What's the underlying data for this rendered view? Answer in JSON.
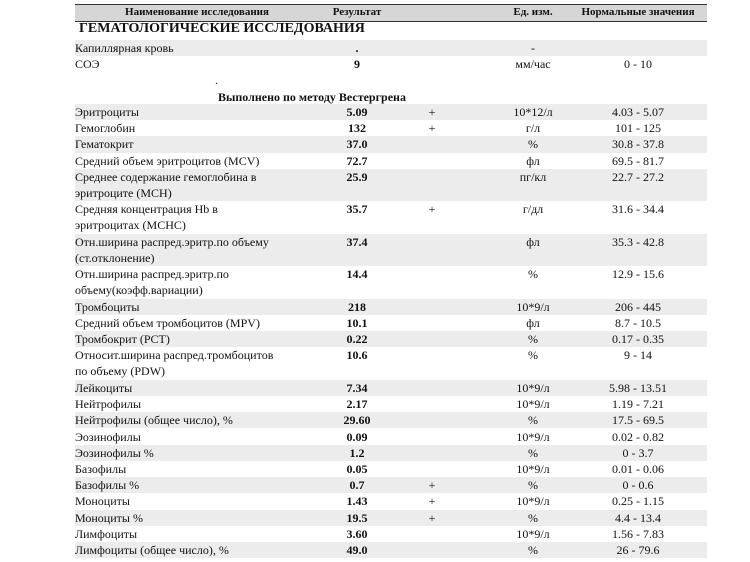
{
  "header": {
    "columns": [
      "Наименование исследования",
      "Результат",
      "Ед. изм.",
      "Нормальные значения"
    ]
  },
  "section_title": "ГЕМАТОЛОГИЧЕСКИЕ ИССЛЕДОВАНИЯ",
  "pre_rows": [
    {
      "name": [
        "Капиллярная кровь"
      ],
      "result": ".",
      "unit": "-"
    },
    {
      "name": [
        "СОЭ"
      ],
      "result": "9",
      "unit": "мм/час",
      "norm": "0 - 10"
    }
  ],
  "note_dot": ".",
  "method": "Выполнено по методу Вестергрена",
  "rows": [
    {
      "name": [
        "Эритроциты"
      ],
      "result": "5.09",
      "flag": "+",
      "unit": "10*12/л",
      "norm": "4.03 - 5.07"
    },
    {
      "name": [
        "Гемоглобин"
      ],
      "result": "132",
      "flag": "+",
      "unit": "г/л",
      "norm": "101 - 125"
    },
    {
      "name": [
        "Гематокрит"
      ],
      "result": "37.0",
      "unit": "%",
      "norm": "30.8 - 37.8"
    },
    {
      "name": [
        "Средний объем эритроцитов (MCV)"
      ],
      "result": "72.7",
      "unit": "фл",
      "norm": "69.5 - 81.7"
    },
    {
      "name": [
        "Среднее содержание гемоглобина в",
        "эритроците (MCH)"
      ],
      "result": "25.9",
      "unit": "пг/кл",
      "norm": "22.7 - 27.2"
    },
    {
      "name": [
        "Средняя концентрация Hb в",
        "эритроцитах (MCHC)"
      ],
      "result": "35.7",
      "flag": "+",
      "unit": "г/дл",
      "norm": "31.6 - 34.4"
    },
    {
      "name": [
        "Отн.ширина распред.эритр.по объему",
        "(ст.отклонение)"
      ],
      "result": "37.4",
      "unit": "фл",
      "norm": "35.3 - 42.8"
    },
    {
      "name": [
        "Отн.ширина распред.эритр.по",
        "объему(коэфф.вариации)"
      ],
      "result": "14.4",
      "unit": "%",
      "norm": "12.9 - 15.6"
    },
    {
      "name": [
        "Тромбоциты"
      ],
      "result": "218",
      "unit": "10*9/л",
      "norm": "206 - 445"
    },
    {
      "name": [
        "Средний объем тромбоцитов (MPV)"
      ],
      "result": "10.1",
      "unit": "фл",
      "norm": "8.7 - 10.5"
    },
    {
      "name": [
        "Тромбокрит (PCT)"
      ],
      "result": "0.22",
      "unit": "%",
      "norm": "0.17 - 0.35"
    },
    {
      "name": [
        "Относит.ширина распред.тромбоцитов",
        "по объему (PDW)"
      ],
      "result": "10.6",
      "unit": "%",
      "norm": "9 - 14"
    },
    {
      "name": [
        "Лейкоциты"
      ],
      "result": "7.34",
      "unit": "10*9/л",
      "norm": "5.98 - 13.51"
    },
    {
      "name": [
        "Нейтрофилы"
      ],
      "result": "2.17",
      "unit": "10*9/л",
      "norm": "1.19 - 7.21"
    },
    {
      "name": [
        "Нейтрофилы (общее число), %"
      ],
      "result": "29.60",
      "unit": "%",
      "norm": "17.5 - 69.5"
    },
    {
      "name": [
        "Эозинофилы"
      ],
      "result": "0.09",
      "unit": "10*9/л",
      "norm": "0.02 - 0.82"
    },
    {
      "name": [
        "Эозинофилы %"
      ],
      "result": "1.2",
      "unit": "%",
      "norm": "0 - 3.7"
    },
    {
      "name": [
        "Базофилы"
      ],
      "result": "0.05",
      "unit": "10*9/л",
      "norm": "0.01 - 0.06"
    },
    {
      "name": [
        "Базофилы %"
      ],
      "result": "0.7",
      "flag": "+",
      "unit": "%",
      "norm": "0 - 0.6"
    },
    {
      "name": [
        "Моноциты"
      ],
      "result": "1.43",
      "flag": "+",
      "unit": "10*9/л",
      "norm": "0.25 - 1.15"
    },
    {
      "name": [
        "Моноциты %"
      ],
      "result": "19.5",
      "flag": "+",
      "unit": "%",
      "norm": "4.4 - 13.4"
    },
    {
      "name": [
        "Лимфоциты"
      ],
      "result": "3.60",
      "unit": "10*9/л",
      "norm": "1.56 - 7.83"
    },
    {
      "name": [
        "Лимфоциты (общее число), %"
      ],
      "result": "49.0",
      "unit": "%",
      "norm": "26 - 79.6"
    }
  ]
}
